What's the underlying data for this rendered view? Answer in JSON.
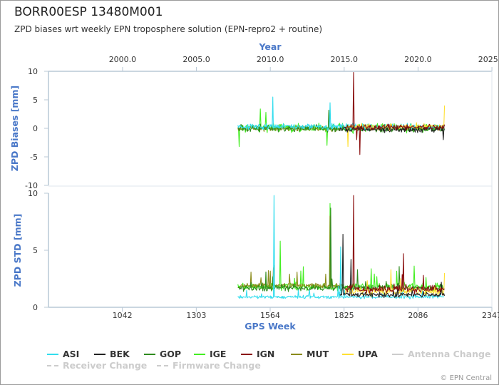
{
  "title": "BORR00ESP 13480M001",
  "subtitle": "ZPD biases wrt weekly EPN troposphere solution (EPN-repro2 + routine)",
  "credits": "© EPN Central",
  "chart_data": {
    "type": "line",
    "top_axis": {
      "title": "Year",
      "ticks": [
        "2000.0",
        "2005.0",
        "2010.0",
        "2015.0",
        "2020.0",
        "2025.0"
      ],
      "values": [
        2000,
        2005,
        2010,
        2015,
        2020,
        2025
      ]
    },
    "x_axis": {
      "title": "GPS Week",
      "range": [
        781,
        2347
      ],
      "ticks": [
        "1042",
        "1303",
        "1564",
        "1825",
        "2086",
        "2347"
      ],
      "values": [
        1042,
        1303,
        1564,
        1825,
        2086,
        2347
      ]
    },
    "panels": [
      {
        "ylabel": "ZPD Biases [mm]",
        "ylim": [
          -10,
          10
        ],
        "ticks": [
          "10",
          "5",
          "0",
          "-5",
          "-10"
        ],
        "values": [
          10,
          5,
          0,
          -5,
          -10
        ]
      },
      {
        "ylabel": "ZPD STD [mm]",
        "ylim": [
          0,
          10
        ],
        "ticks": [
          "10",
          "5",
          "0"
        ],
        "values": [
          10,
          5,
          0
        ]
      }
    ],
    "series": [
      {
        "name": "ASI",
        "color": "#33ddee",
        "weeks": [
          1450,
          2180
        ],
        "bias_mean": 0.3,
        "bias_noise": 0.8,
        "std_mean": 0.9,
        "std_noise": 0.2,
        "spikes_bias": [
          [
            1572,
            5.5
          ],
          [
            1775,
            4.5
          ]
        ],
        "spikes_std": [
          [
            1578,
            9.8
          ],
          [
            1812,
            5.3
          ]
        ]
      },
      {
        "name": "BEK",
        "color": "#222222",
        "weeks": [
          1810,
          2180
        ],
        "bias_mean": -0.2,
        "bias_noise": 0.7,
        "std_mean": 1.1,
        "std_noise": 0.3,
        "spikes_bias": [
          [
            2175,
            -2.0
          ]
        ],
        "spikes_std": [
          [
            1822,
            6.4
          ],
          [
            1851,
            4.2
          ],
          [
            2170,
            2.2
          ]
        ]
      },
      {
        "name": "GOP",
        "color": "#2e8b1e",
        "weeks": [
          1450,
          2180
        ],
        "bias_mean": 0.0,
        "bias_noise": 0.9,
        "std_mean": 1.7,
        "std_noise": 0.4,
        "spikes_bias": [
          [
            1770,
            3.2
          ]
        ],
        "spikes_std": [
          [
            1778,
            8.7
          ]
        ]
      },
      {
        "name": "IGE",
        "color": "#44ee22",
        "weeks": [
          1450,
          2180
        ],
        "bias_mean": 0.1,
        "bias_noise": 1.1,
        "std_mean": 1.8,
        "std_noise": 0.5,
        "spikes_bias": [
          [
            1455,
            -3.2
          ],
          [
            1528,
            3.4
          ],
          [
            1548,
            2.8
          ],
          [
            1765,
            -3.0
          ]
        ],
        "spikes_std": [
          [
            1600,
            5.8
          ],
          [
            1775,
            9.1
          ]
        ]
      },
      {
        "name": "IGN",
        "color": "#8b1010",
        "weeks": [
          1830,
          2180
        ],
        "bias_mean": 0.2,
        "bias_noise": 0.7,
        "std_mean": 1.6,
        "std_noise": 0.6,
        "spikes_bias": [
          [
            1860,
            9.8
          ],
          [
            1870,
            -2.0
          ],
          [
            1880,
            -4.6
          ]
        ],
        "spikes_std": [
          [
            1860,
            9.8
          ],
          [
            2035,
            4.7
          ],
          [
            2105,
            2.8
          ]
        ]
      },
      {
        "name": "MUT",
        "color": "#8b8b1a",
        "weeks": [
          1450,
          1820
        ],
        "bias_mean": 0.0,
        "bias_noise": 0.7,
        "std_mean": 1.9,
        "std_noise": 0.35,
        "spikes_bias": [],
        "spikes_std": [
          [
            1775,
            8.0
          ]
        ]
      },
      {
        "name": "UPA",
        "color": "#ffe033",
        "weeks": [
          1830,
          2180
        ],
        "bias_mean": 0.3,
        "bias_noise": 0.9,
        "std_mean": 1.4,
        "std_noise": 0.5,
        "spikes_bias": [
          [
            1840,
            -3.2
          ],
          [
            2180,
            4.0
          ]
        ],
        "spikes_std": [
          [
            1990,
            3.3
          ],
          [
            2180,
            3.0
          ]
        ]
      }
    ],
    "legend_extra": [
      {
        "name": "Antenna Change",
        "color": "#cccccc",
        "dashed": false
      },
      {
        "name": "Receiver Change",
        "color": "#cccccc",
        "dashed": true
      },
      {
        "name": "Firmware Change",
        "color": "#cccccc",
        "dashed": true
      }
    ],
    "legend_position": "bottom",
    "grid": false
  }
}
